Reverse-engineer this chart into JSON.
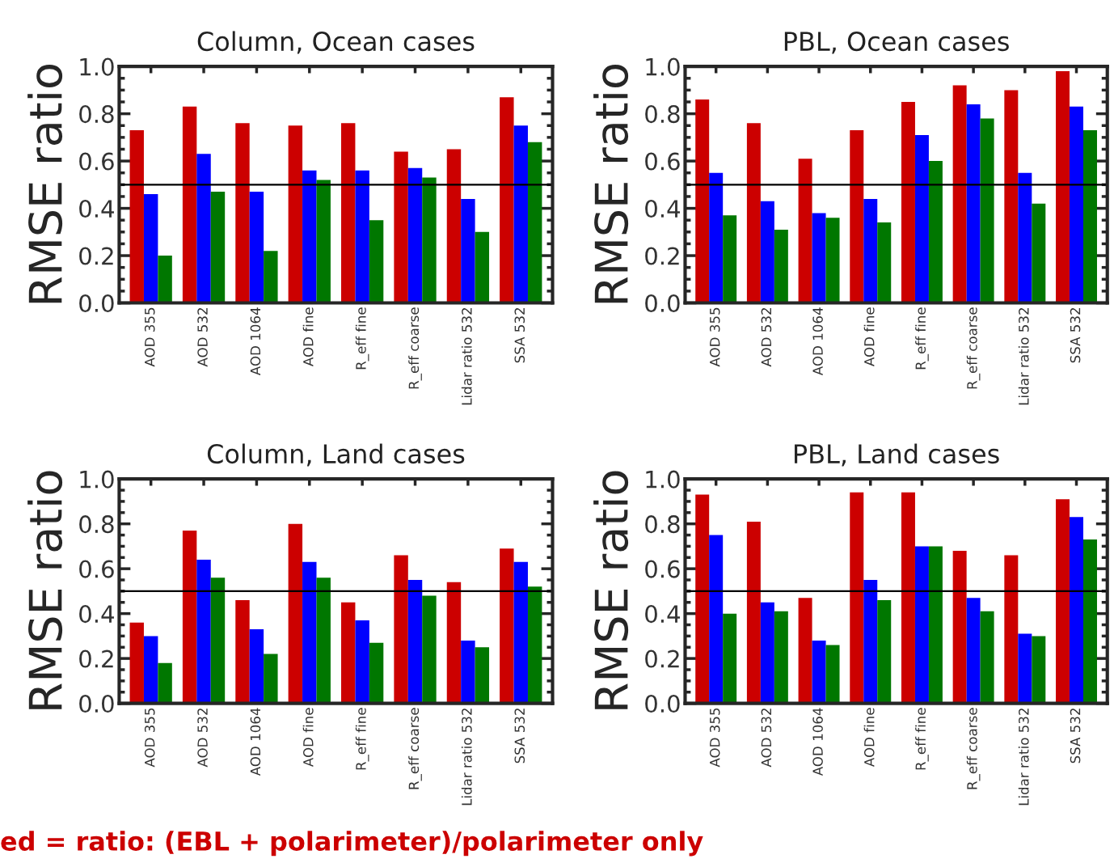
{
  "chart_data": [
    {
      "type": "bar",
      "title": "Column, Ocean cases",
      "ylabel": "RMSE ratio",
      "categories": [
        "AOD 355",
        "AOD 532",
        "AOD 1064",
        "AOD fine",
        "R_eff fine",
        "R_eff coarse",
        "Lidar ratio 532",
        "SSA 532"
      ],
      "series": [
        {
          "color": "#cc0000",
          "values": [
            0.73,
            0.83,
            0.76,
            0.75,
            0.76,
            0.64,
            0.65,
            0.87
          ]
        },
        {
          "color": "#0000ff",
          "values": [
            0.46,
            0.63,
            0.47,
            0.56,
            0.56,
            0.57,
            0.44,
            0.75
          ]
        },
        {
          "color": "#007700",
          "values": [
            0.2,
            0.47,
            0.22,
            0.52,
            0.35,
            0.53,
            0.3,
            0.68
          ]
        }
      ],
      "ylim": [
        0,
        1.0
      ],
      "yticks": [
        {
          "value": 0,
          "label": "0.0"
        },
        {
          "value": 0.2,
          "label": "0.2"
        },
        {
          "value": 0.4,
          "label": "0.4"
        },
        {
          "value": 0.6,
          "label": "0.6"
        },
        {
          "value": 0.8,
          "label": "0.8"
        },
        {
          "value": 1.0,
          "label": "1.0"
        }
      ],
      "ref_lines": [
        {
          "axis": "y",
          "value": 0.5,
          "color": "#000000"
        }
      ]
    },
    {
      "type": "bar",
      "title": "PBL, Ocean cases",
      "ylabel": "RMSE ratio",
      "categories": [
        "AOD 355",
        "AOD 532",
        "AOD 1064",
        "AOD fine",
        "R_eff fine",
        "R_eff coarse",
        "Lidar ratio 532",
        "SSA 532"
      ],
      "series": [
        {
          "color": "#cc0000",
          "values": [
            0.86,
            0.76,
            0.61,
            0.73,
            0.85,
            0.92,
            0.9,
            0.98
          ]
        },
        {
          "color": "#0000ff",
          "values": [
            0.55,
            0.43,
            0.38,
            0.44,
            0.71,
            0.84,
            0.55,
            0.83
          ]
        },
        {
          "color": "#007700",
          "values": [
            0.37,
            0.31,
            0.36,
            0.34,
            0.6,
            0.78,
            0.42,
            0.73
          ]
        }
      ],
      "ylim": [
        0,
        1.0
      ],
      "yticks": [
        {
          "value": 0,
          "label": "0.0"
        },
        {
          "value": 0.2,
          "label": "0.2"
        },
        {
          "value": 0.4,
          "label": "0.4"
        },
        {
          "value": 0.6,
          "label": "0.6"
        },
        {
          "value": 0.8,
          "label": "0.8"
        },
        {
          "value": 1.0,
          "label": "1.0"
        }
      ],
      "ref_lines": [
        {
          "axis": "y",
          "value": 0.5,
          "color": "#000000"
        }
      ]
    },
    {
      "type": "bar",
      "title": "Column, Land cases",
      "ylabel": "RMSE ratio",
      "categories": [
        "AOD 355",
        "AOD 532",
        "AOD 1064",
        "AOD fine",
        "R_eff fine",
        "R_eff coarse",
        "Lidar ratio 532",
        "SSA 532"
      ],
      "series": [
        {
          "color": "#cc0000",
          "values": [
            0.36,
            0.77,
            0.46,
            0.8,
            0.45,
            0.66,
            0.54,
            0.69
          ]
        },
        {
          "color": "#0000ff",
          "values": [
            0.3,
            0.64,
            0.33,
            0.63,
            0.37,
            0.55,
            0.28,
            0.63
          ]
        },
        {
          "color": "#007700",
          "values": [
            0.18,
            0.56,
            0.22,
            0.56,
            0.27,
            0.48,
            0.25,
            0.52
          ]
        }
      ],
      "ylim": [
        0,
        1.0
      ],
      "yticks": [
        {
          "value": 0,
          "label": "0.0"
        },
        {
          "value": 0.2,
          "label": "0.2"
        },
        {
          "value": 0.4,
          "label": "0.4"
        },
        {
          "value": 0.6,
          "label": "0.6"
        },
        {
          "value": 0.8,
          "label": "0.8"
        },
        {
          "value": 1.0,
          "label": "1.0"
        }
      ],
      "ref_lines": [
        {
          "axis": "y",
          "value": 0.5,
          "color": "#000000"
        }
      ],
      "annotations": [
        "ed = ratio: (EBL + polarimeter)/polarimeter only"
      ]
    },
    {
      "type": "bar",
      "title": "PBL, Land cases",
      "ylabel": "RMSE ratio",
      "categories": [
        "AOD 355",
        "AOD 532",
        "AOD 1064",
        "AOD fine",
        "R_eff fine",
        "R_eff coarse",
        "Lidar ratio 532",
        "SSA 532"
      ],
      "series": [
        {
          "color": "#cc0000",
          "values": [
            0.93,
            0.81,
            0.47,
            0.94,
            0.94,
            0.68,
            0.66,
            0.91
          ]
        },
        {
          "color": "#0000ff",
          "values": [
            0.75,
            0.45,
            0.28,
            0.55,
            0.7,
            0.47,
            0.31,
            0.83
          ]
        },
        {
          "color": "#007700",
          "values": [
            0.4,
            0.41,
            0.26,
            0.46,
            0.7,
            0.41,
            0.3,
            0.73
          ]
        }
      ],
      "ylim": [
        0,
        1.0
      ],
      "yticks": [
        {
          "value": 0,
          "label": "0.0"
        },
        {
          "value": 0.2,
          "label": "0.2"
        },
        {
          "value": 0.4,
          "label": "0.4"
        },
        {
          "value": 0.6,
          "label": "0.6"
        },
        {
          "value": 0.8,
          "label": "0.8"
        },
        {
          "value": 1.0,
          "label": "1.0"
        }
      ],
      "ref_lines": [
        {
          "axis": "y",
          "value": 0.5,
          "color": "#000000"
        }
      ]
    }
  ]
}
